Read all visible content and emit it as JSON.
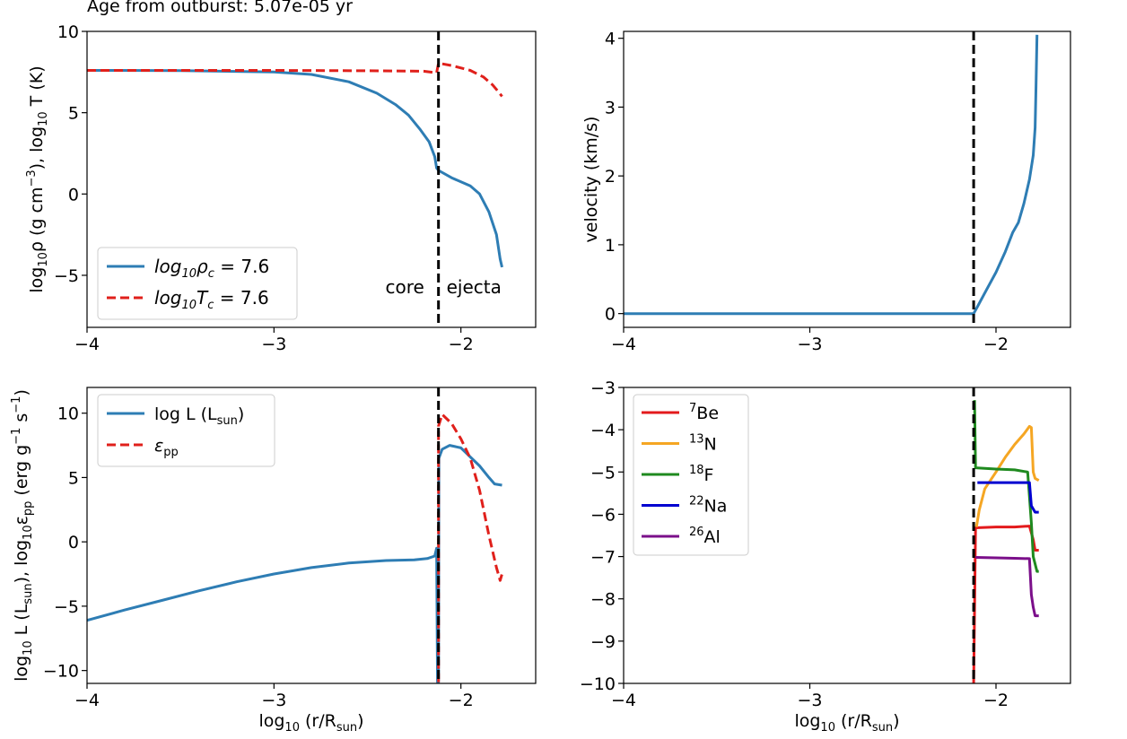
{
  "figure": {
    "title": "Age from outburst: 5.07e-05 yr"
  },
  "colors": {
    "blue": "#2e7db4",
    "red_dashed": "#e0201b",
    "be7": "#e31a1c",
    "n13": "#f5a623",
    "f18": "#1f8a1f",
    "na22": "#0000d0",
    "al26": "#7b0f8a",
    "boundary": "#000000"
  },
  "chart_data": [
    {
      "id": "density-temperature",
      "type": "line",
      "title": "",
      "xlabel": "",
      "ylabel": "log10ρ (g cm−3), log10 T (K)",
      "xlim": [
        -4.0,
        -1.6
      ],
      "ylim": [
        -8.2,
        10.0
      ],
      "xticks": [
        -4,
        -3,
        -2
      ],
      "xtick_labels": [
        "−4",
        "−3",
        "−2"
      ],
      "yticks": [
        10,
        5,
        0,
        -5
      ],
      "ytick_labels": [
        "10",
        "5",
        "0",
        "−5"
      ],
      "legend_position": "lower-left",
      "boundary_x": -2.12,
      "annotations": [
        {
          "text": "core",
          "x": -2.3,
          "y": -6.1
        },
        {
          "text": "ejecta",
          "x": -1.93,
          "y": -6.1
        }
      ],
      "series": [
        {
          "name": "log10ρc = 7.6",
          "label_prefix": "log",
          "label_sub1": "10",
          "label_sym": "ρ",
          "label_sub2": "c",
          "label_value": " = 7.6",
          "style": "solid",
          "color_key": "blue",
          "points": [
            [
              -4.0,
              7.6
            ],
            [
              -3.5,
              7.59
            ],
            [
              -3.0,
              7.5
            ],
            [
              -2.8,
              7.35
            ],
            [
              -2.6,
              6.9
            ],
            [
              -2.45,
              6.2
            ],
            [
              -2.35,
              5.5
            ],
            [
              -2.28,
              4.85
            ],
            [
              -2.22,
              4.0
            ],
            [
              -2.17,
              3.2
            ],
            [
              -2.14,
              2.3
            ],
            [
              -2.13,
              1.6
            ],
            [
              -2.12,
              1.45
            ],
            [
              -2.05,
              1.0
            ],
            [
              -1.95,
              0.5
            ],
            [
              -1.9,
              0.0
            ],
            [
              -1.85,
              -1.1
            ],
            [
              -1.81,
              -2.5
            ],
            [
              -1.79,
              -4.0
            ],
            [
              -1.78,
              -4.5
            ]
          ]
        },
        {
          "name": "log10Tc = 7.6",
          "label_prefix": "log",
          "label_sub1": "10",
          "label_sym": "T",
          "label_sub2": "c",
          "label_value": " = 7.6",
          "style": "dashed",
          "color_key": "red_dashed",
          "points": [
            [
              -4.0,
              7.6
            ],
            [
              -3.0,
              7.6
            ],
            [
              -2.5,
              7.58
            ],
            [
              -2.2,
              7.55
            ],
            [
              -2.13,
              7.45
            ],
            [
              -2.12,
              8.05
            ],
            [
              -2.05,
              7.9
            ],
            [
              -1.95,
              7.6
            ],
            [
              -1.88,
              7.2
            ],
            [
              -1.83,
              6.7
            ],
            [
              -1.8,
              6.3
            ],
            [
              -1.78,
              6.0
            ]
          ]
        }
      ]
    },
    {
      "id": "velocity",
      "type": "line",
      "title": "",
      "xlabel": "",
      "ylabel": "velocity (km/s)",
      "xlim": [
        -4.0,
        -1.6
      ],
      "ylim": [
        -0.2,
        4.1
      ],
      "xticks": [
        -4,
        -3,
        -2
      ],
      "xtick_labels": [
        "−4",
        "−3",
        "−2"
      ],
      "yticks": [
        0,
        1,
        2,
        3,
        4
      ],
      "ytick_labels": [
        "0",
        "1",
        "2",
        "3",
        "4"
      ],
      "boundary_x": -2.12,
      "series": [
        {
          "name": "velocity",
          "style": "solid",
          "color_key": "blue",
          "points": [
            [
              -4.0,
              0.0
            ],
            [
              -3.0,
              0.0
            ],
            [
              -2.12,
              0.0
            ],
            [
              -2.1,
              0.1
            ],
            [
              -2.05,
              0.35
            ],
            [
              -2.0,
              0.6
            ],
            [
              -1.95,
              0.9
            ],
            [
              -1.91,
              1.18
            ],
            [
              -1.88,
              1.32
            ],
            [
              -1.85,
              1.6
            ],
            [
              -1.82,
              1.95
            ],
            [
              -1.8,
              2.3
            ],
            [
              -1.79,
              2.7
            ],
            [
              -1.785,
              3.3
            ],
            [
              -1.78,
              4.05
            ]
          ]
        }
      ]
    },
    {
      "id": "luminosity-energy",
      "type": "line",
      "title": "",
      "xlabel": "log10 (r/Rsun)",
      "ylabel": "log10 L (Lsun), log10εpp (erg g−1 s−1)",
      "xlim": [
        -4.0,
        -1.6
      ],
      "ylim": [
        -11.0,
        12.0
      ],
      "xticks": [
        -4,
        -3,
        -2
      ],
      "xtick_labels": [
        "−4",
        "−3",
        "−2"
      ],
      "yticks": [
        10,
        5,
        0,
        -5,
        -10
      ],
      "ytick_labels": [
        "10",
        "5",
        "0",
        "−5",
        "−10"
      ],
      "legend_position": "upper-left",
      "boundary_x": -2.12,
      "series": [
        {
          "name": "log L (Lsun)",
          "label_main": "log L (L",
          "label_sub": "sun",
          "label_tail": ")",
          "style": "solid",
          "color_key": "blue",
          "points": [
            [
              -4.0,
              -6.1
            ],
            [
              -3.8,
              -5.3
            ],
            [
              -3.6,
              -4.55
            ],
            [
              -3.4,
              -3.8
            ],
            [
              -3.2,
              -3.1
            ],
            [
              -3.0,
              -2.5
            ],
            [
              -2.8,
              -2.0
            ],
            [
              -2.6,
              -1.65
            ],
            [
              -2.4,
              -1.45
            ],
            [
              -2.25,
              -1.4
            ],
            [
              -2.18,
              -1.3
            ],
            [
              -2.14,
              -1.1
            ],
            [
              -2.13,
              -0.5
            ],
            [
              -2.125,
              -10.9
            ],
            [
              -2.12,
              -10.9
            ],
            [
              -2.118,
              6.5
            ],
            [
              -2.1,
              7.2
            ],
            [
              -2.06,
              7.5
            ],
            [
              -2.0,
              7.3
            ],
            [
              -1.95,
              6.6
            ],
            [
              -1.9,
              5.9
            ],
            [
              -1.85,
              5.0
            ],
            [
              -1.82,
              4.5
            ],
            [
              -1.78,
              4.4
            ]
          ]
        },
        {
          "name": "εpp",
          "label_main": "ε",
          "label_sub": "pp",
          "label_tail": "",
          "style": "dashed",
          "color_key": "red_dashed",
          "points": [
            [
              -2.12,
              -10.9
            ],
            [
              -2.12,
              9.0
            ],
            [
              -2.1,
              9.9
            ],
            [
              -2.05,
              9.2
            ],
            [
              -2.0,
              8.0
            ],
            [
              -1.95,
              6.5
            ],
            [
              -1.9,
              4.0
            ],
            [
              -1.85,
              0.5
            ],
            [
              -1.81,
              -2.0
            ],
            [
              -1.79,
              -3.0
            ],
            [
              -1.78,
              -2.5
            ]
          ]
        }
      ]
    },
    {
      "id": "isotopes",
      "type": "line",
      "title": "",
      "xlabel": "log10 (r/Rsun)",
      "ylabel": "",
      "xlim": [
        -4.0,
        -1.6
      ],
      "ylim": [
        -10.0,
        -3.0
      ],
      "xticks": [
        -4,
        -3,
        -2
      ],
      "xtick_labels": [
        "−4",
        "−3",
        "−2"
      ],
      "yticks": [
        -3,
        -4,
        -5,
        -6,
        -7,
        -8,
        -9,
        -10
      ],
      "ytick_labels": [
        "−3",
        "−4",
        "−5",
        "−6",
        "−7",
        "−8",
        "−9",
        "−10"
      ],
      "legend_position": "upper-left",
      "boundary_x": -2.12,
      "series": [
        {
          "name": "7Be",
          "mass": "7",
          "element": "Be",
          "style": "solid",
          "color_key": "be7",
          "points": [
            [
              -2.12,
              -10.0
            ],
            [
              -2.11,
              -6.32
            ],
            [
              -2.0,
              -6.3
            ],
            [
              -1.9,
              -6.3
            ],
            [
              -1.82,
              -6.28
            ],
            [
              -1.8,
              -6.6
            ],
            [
              -1.79,
              -6.85
            ],
            [
              -1.77,
              -6.85
            ]
          ]
        },
        {
          "name": "13N",
          "mass": "13",
          "element": "N",
          "style": "solid",
          "color_key": "n13",
          "points": [
            [
              -2.105,
              -6.3
            ],
            [
              -2.09,
              -5.9
            ],
            [
              -2.06,
              -5.4
            ],
            [
              -2.0,
              -5.0
            ],
            [
              -1.95,
              -4.65
            ],
            [
              -1.9,
              -4.35
            ],
            [
              -1.85,
              -4.1
            ],
            [
              -1.82,
              -3.92
            ],
            [
              -1.81,
              -3.95
            ],
            [
              -1.8,
              -5.0
            ],
            [
              -1.79,
              -5.15
            ],
            [
              -1.77,
              -5.2
            ]
          ]
        },
        {
          "name": "18F",
          "mass": "18",
          "element": "F",
          "style": "solid",
          "color_key": "f18",
          "points": [
            [
              -2.115,
              -3.3
            ],
            [
              -2.11,
              -4.9
            ],
            [
              -2.0,
              -4.93
            ],
            [
              -1.9,
              -4.95
            ],
            [
              -1.83,
              -5.0
            ],
            [
              -1.81,
              -6.2
            ],
            [
              -1.8,
              -7.0
            ],
            [
              -1.78,
              -7.35
            ],
            [
              -1.77,
              -7.35
            ]
          ]
        },
        {
          "name": "22Na",
          "mass": "22",
          "element": "Na",
          "style": "solid",
          "color_key": "na22",
          "points": [
            [
              -2.1,
              -5.25
            ],
            [
              -2.0,
              -5.25
            ],
            [
              -1.9,
              -5.25
            ],
            [
              -1.82,
              -5.25
            ],
            [
              -1.81,
              -5.8
            ],
            [
              -1.79,
              -5.95
            ],
            [
              -1.77,
              -5.95
            ]
          ]
        },
        {
          "name": "26Al",
          "mass": "26",
          "element": "Al",
          "style": "solid",
          "color_key": "al26",
          "points": [
            [
              -2.11,
              -7.02
            ],
            [
              -2.0,
              -7.03
            ],
            [
              -1.9,
              -7.04
            ],
            [
              -1.82,
              -7.05
            ],
            [
              -1.81,
              -7.9
            ],
            [
              -1.8,
              -8.2
            ],
            [
              -1.79,
              -8.4
            ],
            [
              -1.77,
              -8.4
            ]
          ]
        }
      ]
    }
  ]
}
